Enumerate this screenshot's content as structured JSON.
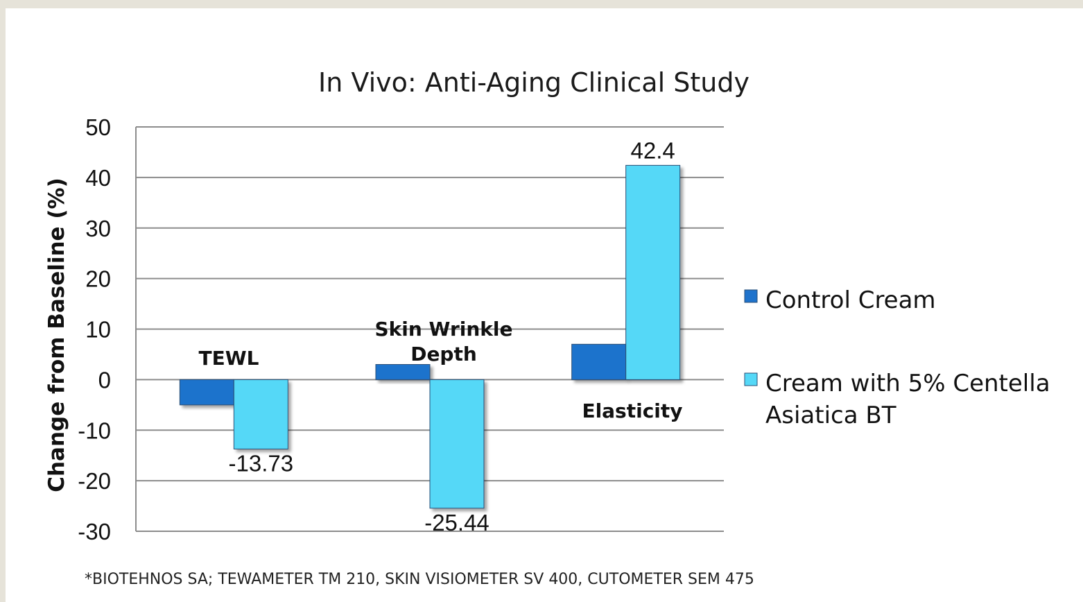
{
  "chart_data": {
    "type": "bar",
    "title": "In Vivo: Anti-Aging Clinical Study",
    "ylabel": "Change from Baseline (%)",
    "xlabel": "",
    "ylim": [
      -30,
      50
    ],
    "yticks": [
      "50",
      "40",
      "30",
      "20",
      "10",
      "0",
      "-10",
      "-20",
      "-30"
    ],
    "categories": [
      {
        "lines": [
          "TEWL"
        ]
      },
      {
        "lines": [
          "Skin Wrinkle",
          "Depth"
        ]
      },
      {
        "lines": [
          "Elasticity"
        ]
      }
    ],
    "series": [
      {
        "name": "Control Cream",
        "values": [
          -5,
          3,
          7
        ],
        "labels": [
          "",
          "",
          ""
        ],
        "color": "#1f73cc"
      },
      {
        "name_lines": [
          "Cream with 5% Centella",
          "Asiatica BT"
        ],
        "values": [
          -13.73,
          -25.44,
          42.4
        ],
        "labels": [
          "-13.73",
          "-25.44",
          "42.4"
        ],
        "color": "#55d8f7"
      }
    ],
    "grid": true,
    "legend_position": "right",
    "footnote": "*BIOTEHNOS SA; TEWAMETER TM 210, SKIN VISIOMETER SV 400, CUTOMETER SEM 475"
  }
}
